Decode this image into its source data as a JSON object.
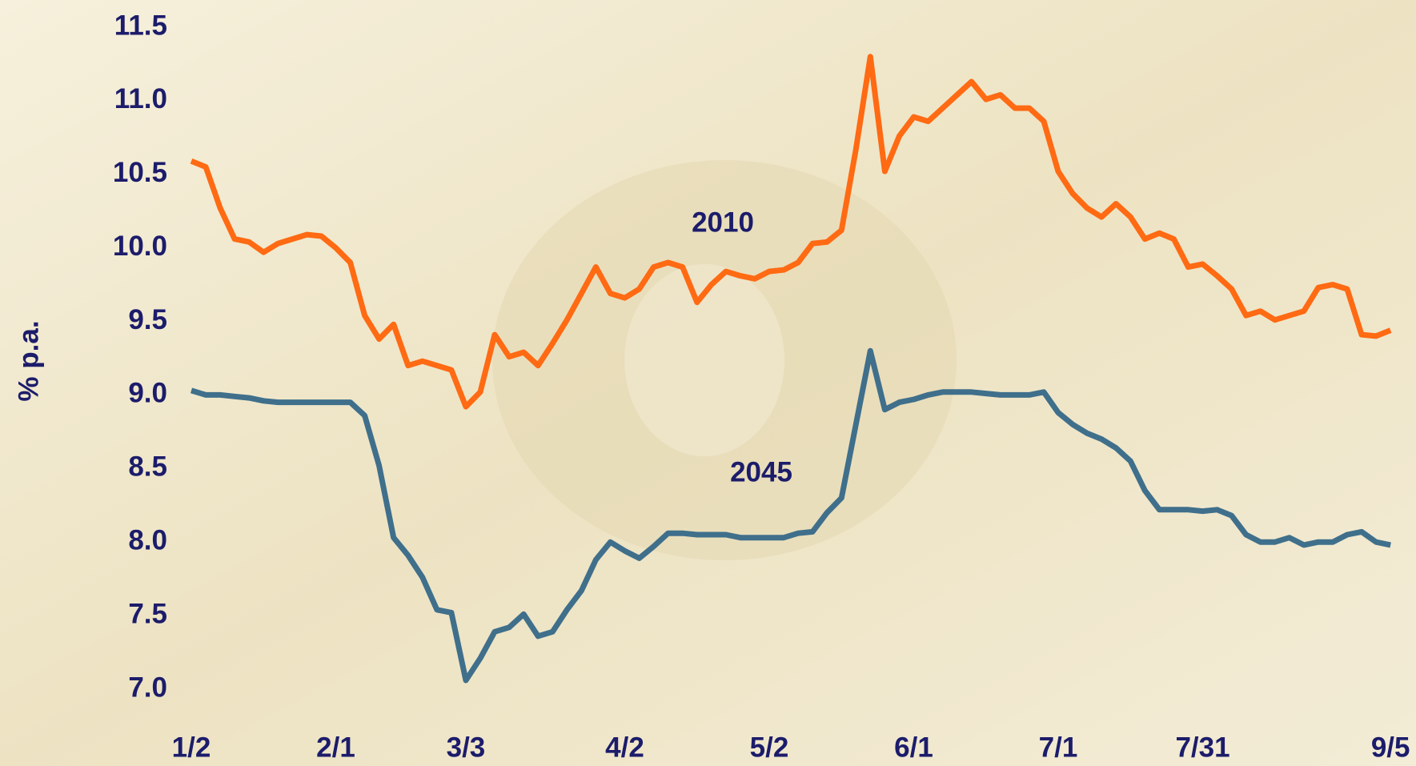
{
  "chart_data": {
    "type": "line",
    "y_label": "% p.a.",
    "annotations": [
      "2010",
      "2045"
    ],
    "categories": [
      "1/2",
      null,
      null,
      null,
      null,
      null,
      null,
      null,
      null,
      null,
      "2/1",
      null,
      null,
      null,
      null,
      null,
      null,
      null,
      null,
      "3/3",
      null,
      null,
      null,
      null,
      null,
      null,
      null,
      null,
      null,
      null,
      "4/2",
      null,
      null,
      null,
      null,
      null,
      null,
      null,
      null,
      null,
      "5/2",
      null,
      null,
      null,
      null,
      null,
      null,
      null,
      null,
      null,
      "6/1",
      null,
      null,
      null,
      null,
      null,
      null,
      null,
      null,
      null,
      "7/1",
      null,
      null,
      null,
      null,
      null,
      null,
      null,
      null,
      null,
      "7/31",
      null,
      null,
      null,
      null,
      null,
      null,
      null,
      null,
      null,
      null,
      null,
      null,
      "9/5"
    ],
    "series": [
      {
        "name": "2010",
        "color": "#ff6a13",
        "values": [
          10.59,
          10.55,
          10.27,
          10.06,
          10.04,
          9.97,
          10.03,
          10.06,
          10.09,
          10.08,
          10.0,
          9.9,
          9.54,
          9.38,
          9.48,
          9.2,
          9.23,
          9.2,
          9.17,
          8.92,
          9.02,
          9.41,
          9.26,
          9.29,
          9.2,
          9.35,
          9.51,
          9.69,
          9.87,
          9.69,
          9.66,
          9.72,
          9.87,
          9.9,
          9.87,
          9.63,
          9.75,
          9.84,
          9.81,
          9.79,
          9.84,
          9.85,
          9.9,
          10.03,
          10.04,
          10.12,
          10.67,
          11.3,
          10.52,
          10.76,
          10.89,
          10.86,
          10.95,
          11.04,
          11.13,
          11.01,
          11.04,
          10.95,
          10.95,
          10.86,
          10.52,
          10.37,
          10.27,
          10.21,
          10.3,
          10.21,
          10.06,
          10.1,
          10.06,
          9.87,
          9.89,
          9.81,
          9.72,
          9.54,
          9.57,
          9.51,
          9.54,
          9.57,
          9.73,
          9.75,
          9.72,
          9.41,
          9.4,
          9.44
        ]
      },
      {
        "name": "2045",
        "color": "#3f6f8b",
        "values": [
          9.03,
          9.0,
          9.0,
          8.99,
          8.98,
          8.96,
          8.95,
          8.95,
          8.95,
          8.95,
          8.95,
          8.95,
          8.86,
          8.52,
          8.03,
          7.91,
          7.76,
          7.54,
          7.52,
          7.06,
          7.21,
          7.39,
          7.42,
          7.51,
          7.36,
          7.39,
          7.54,
          7.67,
          7.88,
          8.0,
          7.94,
          7.89,
          7.97,
          8.06,
          8.06,
          8.05,
          8.05,
          8.05,
          8.03,
          8.03,
          8.03,
          8.03,
          8.06,
          8.07,
          8.2,
          8.3,
          8.8,
          9.3,
          8.9,
          8.95,
          8.97,
          9.0,
          9.02,
          9.02,
          9.02,
          9.01,
          9.0,
          9.0,
          9.0,
          9.02,
          8.88,
          8.8,
          8.74,
          8.7,
          8.64,
          8.55,
          8.35,
          8.22,
          8.22,
          8.22,
          8.21,
          8.22,
          8.18,
          8.05,
          8.0,
          8.0,
          8.03,
          7.98,
          8.0,
          8.0,
          8.05,
          8.07,
          8.0,
          7.98
        ]
      }
    ],
    "ylim": [
      7.0,
      11.5
    ],
    "yticks": [
      {
        "value": 7.0,
        "label": "7.0"
      },
      7.5,
      {
        "value": 8.0,
        "label": "8.0"
      },
      8.5,
      {
        "value": 9.0,
        "label": "9.0"
      },
      9.5,
      {
        "value": 10.0,
        "label": "10.0"
      },
      10.5,
      {
        "value": 11.0,
        "label": "11.0"
      },
      11.5
    ],
    "grid": false
  }
}
